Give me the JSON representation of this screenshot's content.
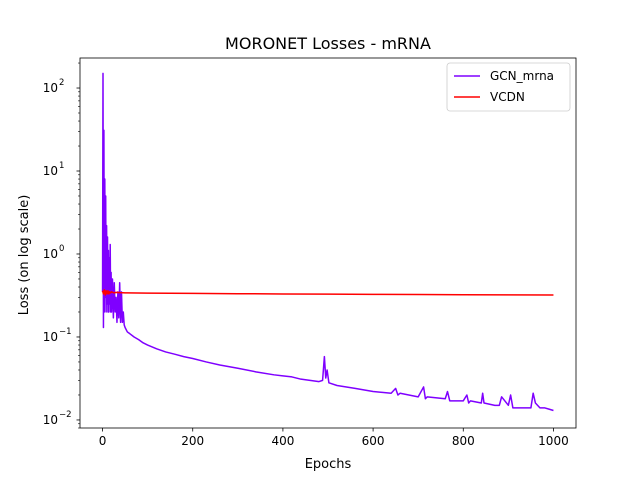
{
  "chart_data": {
    "type": "line",
    "title": "MORONET Losses - mRNA",
    "xlabel": "Epochs",
    "ylabel": "Loss (on log scale)",
    "yscale": "log",
    "xlim": [
      -50,
      1050
    ],
    "ylim": [
      0.008,
      230
    ],
    "x_ticks": [
      0,
      200,
      400,
      600,
      800,
      1000
    ],
    "y_ticks": [
      0.01,
      0.1,
      1,
      10,
      100
    ],
    "grid": false,
    "legend_position": "top-right",
    "series": [
      {
        "name": "GCN_mrna",
        "color": "#7f00ff",
        "x": [
          0,
          1,
          2,
          3,
          4,
          5,
          6,
          7,
          8,
          9,
          10,
          11,
          12,
          13,
          14,
          15,
          16,
          17,
          18,
          19,
          20,
          22,
          24,
          26,
          28,
          30,
          32,
          34,
          36,
          38,
          40,
          42,
          44,
          46,
          48,
          50,
          55,
          60,
          70,
          80,
          90,
          100,
          120,
          140,
          160,
          180,
          200,
          230,
          260,
          300,
          340,
          380,
          400,
          420,
          440,
          460,
          480,
          488,
          492,
          495,
          498,
          502,
          520,
          560,
          600,
          640,
          650,
          655,
          660,
          700,
          712,
          716,
          720,
          760,
          765,
          770,
          800,
          808,
          812,
          816,
          840,
          843,
          846,
          870,
          880,
          885,
          900,
          905,
          910,
          940,
          950,
          955,
          960,
          970,
          980,
          990,
          1000
        ],
        "y": [
          0.35,
          150,
          0.13,
          31,
          0.2,
          8,
          0.3,
          5,
          0.2,
          2.2,
          0.25,
          1.6,
          0.2,
          1.1,
          0.2,
          0.9,
          0.25,
          1.3,
          0.2,
          0.6,
          0.2,
          0.5,
          0.17,
          0.45,
          0.2,
          0.3,
          0.15,
          0.35,
          0.17,
          0.45,
          0.15,
          0.35,
          0.15,
          0.2,
          0.14,
          0.13,
          0.115,
          0.11,
          0.1,
          0.093,
          0.085,
          0.08,
          0.072,
          0.066,
          0.062,
          0.058,
          0.055,
          0.05,
          0.046,
          0.042,
          0.038,
          0.035,
          0.034,
          0.033,
          0.031,
          0.03,
          0.029,
          0.03,
          0.058,
          0.032,
          0.04,
          0.028,
          0.026,
          0.024,
          0.022,
          0.021,
          0.024,
          0.02,
          0.021,
          0.019,
          0.025,
          0.018,
          0.019,
          0.018,
          0.022,
          0.017,
          0.017,
          0.02,
          0.016,
          0.017,
          0.016,
          0.021,
          0.016,
          0.015,
          0.015,
          0.019,
          0.015,
          0.02,
          0.014,
          0.014,
          0.014,
          0.021,
          0.016,
          0.014,
          0.014,
          0.0135,
          0.013
        ]
      },
      {
        "name": "VCDN",
        "color": "#ff0000",
        "x": [
          0,
          2,
          4,
          6,
          8,
          10,
          12,
          14,
          16,
          18,
          20,
          25,
          30,
          40,
          50,
          100,
          200,
          300,
          400,
          500,
          600,
          700,
          800,
          900,
          1000
        ],
        "y": [
          0.36,
          0.33,
          0.37,
          0.32,
          0.36,
          0.33,
          0.36,
          0.33,
          0.35,
          0.34,
          0.35,
          0.34,
          0.345,
          0.342,
          0.34,
          0.338,
          0.335,
          0.332,
          0.33,
          0.328,
          0.326,
          0.325,
          0.323,
          0.322,
          0.32
        ]
      }
    ]
  }
}
